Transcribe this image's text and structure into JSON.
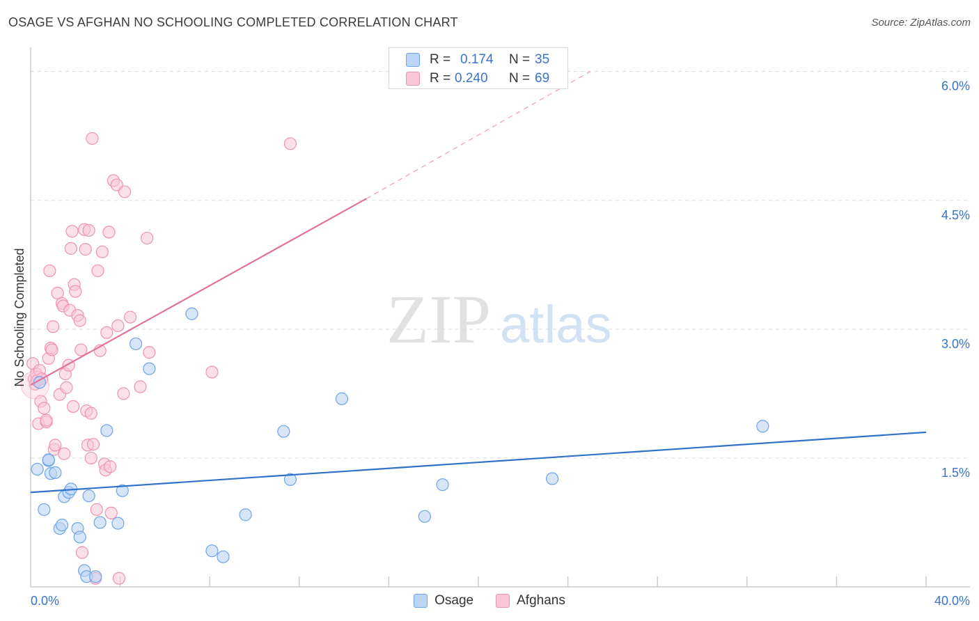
{
  "header": {
    "title": "OSAGE VS AFGHAN NO SCHOOLING COMPLETED CORRELATION CHART",
    "source": "Source: ZipAtlas.com"
  },
  "stats": {
    "rows": [
      {
        "r_label": "R =",
        "r_value": "0.174",
        "n_label": "N =",
        "n_value": "35",
        "color": "#6ea4e6"
      },
      {
        "r_label": "R =",
        "r_value": "0.240",
        "n_label": "N =",
        "n_value": "69",
        "color": "#f08fb0"
      }
    ]
  },
  "legend": {
    "osage": "Osage",
    "afghans": "Afghans"
  },
  "watermark": {
    "zip": "ZIP",
    "atlas": "atlas"
  },
  "colors": {
    "osage_fill": "#bcd4f5",
    "osage_stroke": "#6ea4e6",
    "osage_line": "#2f72c8",
    "afghan_fill": "#f8c6d6",
    "afghan_stroke": "#ee92b1",
    "afghan_line": "#e4719a",
    "axis_label": "#3a72c8",
    "grid": "#dcdcdc"
  },
  "chart_data": {
    "type": "scatter",
    "title": "OSAGE VS AFGHAN NO SCHOOLING COMPLETED CORRELATION CHART",
    "xlabel": "",
    "ylabel": "No Schooling Completed",
    "xlim": [
      0,
      40
    ],
    "ylim": [
      0,
      6.2
    ],
    "x_tick_labels": [
      "0.0%",
      "40.0%"
    ],
    "y_ticks": [
      1.5,
      3.0,
      4.5,
      6.0
    ],
    "y_tick_labels": [
      "1.5%",
      "3.0%",
      "4.5%",
      "6.0%"
    ],
    "grid": true,
    "legend_position": "bottom-center",
    "series": [
      {
        "name": "Osage",
        "r": 0.174,
        "n": 35,
        "trend": {
          "x0": 0,
          "y0": 1.1,
          "x1": 40,
          "y1": 1.8,
          "dashed_from": null
        },
        "points": [
          [
            0.3,
            1.37
          ],
          [
            0.4,
            2.38
          ],
          [
            0.6,
            0.9
          ],
          [
            0.8,
            1.47
          ],
          [
            0.8,
            1.48
          ],
          [
            0.9,
            1.32
          ],
          [
            1.1,
            1.33
          ],
          [
            1.3,
            0.68
          ],
          [
            1.4,
            0.72
          ],
          [
            1.5,
            1.05
          ],
          [
            1.7,
            1.1
          ],
          [
            1.8,
            1.14
          ],
          [
            2.1,
            0.68
          ],
          [
            2.2,
            0.58
          ],
          [
            2.4,
            0.19
          ],
          [
            2.5,
            0.12
          ],
          [
            2.6,
            1.06
          ],
          [
            2.9,
            0.12
          ],
          [
            3.1,
            0.75
          ],
          [
            3.4,
            1.82
          ],
          [
            3.9,
            0.74
          ],
          [
            4.1,
            1.12
          ],
          [
            4.7,
            2.83
          ],
          [
            5.3,
            2.54
          ],
          [
            7.2,
            3.18
          ],
          [
            8.1,
            0.42
          ],
          [
            8.6,
            0.35
          ],
          [
            9.6,
            0.84
          ],
          [
            11.3,
            1.81
          ],
          [
            11.6,
            1.25
          ],
          [
            13.9,
            2.19
          ],
          [
            17.6,
            0.82
          ],
          [
            18.4,
            1.19
          ],
          [
            23.3,
            1.26
          ],
          [
            32.7,
            1.87
          ]
        ]
      },
      {
        "name": "Afghans",
        "r": 0.24,
        "n": 69,
        "trend": {
          "x0": 0,
          "y0": 2.35,
          "x1": 15,
          "y1": 4.52,
          "dashed_to_x": 25,
          "dashed_to_y": 6.0
        },
        "points": [
          [
            0.1,
            2.6
          ],
          [
            0.15,
            2.42
          ],
          [
            0.2,
            2.36
          ],
          [
            0.25,
            2.48
          ],
          [
            0.3,
            2.4
          ],
          [
            0.35,
            1.9
          ],
          [
            0.4,
            2.52
          ],
          [
            0.45,
            2.16
          ],
          [
            0.5,
            2.42
          ],
          [
            0.6,
            2.08
          ],
          [
            0.7,
            1.92
          ],
          [
            0.7,
            1.94
          ],
          [
            0.8,
            2.66
          ],
          [
            0.85,
            3.68
          ],
          [
            0.9,
            2.78
          ],
          [
            0.95,
            2.76
          ],
          [
            1.0,
            3.03
          ],
          [
            1.05,
            1.6
          ],
          [
            1.1,
            1.65
          ],
          [
            1.2,
            3.42
          ],
          [
            1.3,
            2.24
          ],
          [
            1.4,
            3.3
          ],
          [
            1.45,
            3.27
          ],
          [
            1.5,
            1.55
          ],
          [
            1.55,
            2.48
          ],
          [
            1.6,
            2.32
          ],
          [
            1.7,
            2.58
          ],
          [
            1.75,
            3.22
          ],
          [
            1.8,
            3.94
          ],
          [
            1.85,
            4.14
          ],
          [
            1.9,
            2.1
          ],
          [
            1.95,
            3.52
          ],
          [
            2.0,
            3.44
          ],
          [
            2.1,
            3.16
          ],
          [
            2.2,
            3.1
          ],
          [
            2.25,
            2.76
          ],
          [
            2.3,
            0.4
          ],
          [
            2.4,
            4.16
          ],
          [
            2.45,
            3.93
          ],
          [
            2.5,
            2.05
          ],
          [
            2.55,
            1.65
          ],
          [
            2.6,
            4.15
          ],
          [
            2.7,
            2.02
          ],
          [
            2.7,
            1.5
          ],
          [
            2.75,
            5.22
          ],
          [
            2.8,
            1.66
          ],
          [
            2.9,
            0.1
          ],
          [
            2.95,
            0.9
          ],
          [
            3.0,
            3.68
          ],
          [
            3.1,
            2.75
          ],
          [
            3.2,
            3.9
          ],
          [
            3.3,
            1.43
          ],
          [
            3.35,
            1.36
          ],
          [
            3.4,
            2.96
          ],
          [
            3.5,
            4.13
          ],
          [
            3.55,
            1.4
          ],
          [
            3.6,
            0.86
          ],
          [
            3.7,
            4.73
          ],
          [
            3.85,
            4.68
          ],
          [
            3.9,
            3.04
          ],
          [
            3.95,
            0.1
          ],
          [
            4.15,
            2.25
          ],
          [
            4.2,
            4.6
          ],
          [
            4.45,
            3.14
          ],
          [
            4.9,
            2.33
          ],
          [
            5.2,
            4.06
          ],
          [
            5.3,
            2.73
          ],
          [
            8.1,
            2.5
          ],
          [
            11.6,
            5.16
          ]
        ]
      }
    ]
  }
}
